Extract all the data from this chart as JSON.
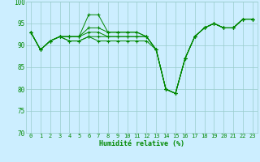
{
  "xlabel": "Humidité relative (%)",
  "bg_color": "#cceeff",
  "grid_color": "#99cccc",
  "line_color": "#008800",
  "xlim": [
    -0.5,
    23.5
  ],
  "ylim": [
    70,
    100
  ],
  "yticks": [
    70,
    75,
    80,
    85,
    90,
    95,
    100
  ],
  "xticks": [
    0,
    1,
    2,
    3,
    4,
    5,
    6,
    7,
    8,
    9,
    10,
    11,
    12,
    13,
    14,
    15,
    16,
    17,
    18,
    19,
    20,
    21,
    22,
    23
  ],
  "series": [
    [
      93,
      89,
      91,
      92,
      92,
      92,
      97,
      97,
      93,
      93,
      93,
      93,
      92,
      89,
      80,
      79,
      87,
      92,
      94,
      95,
      94,
      94,
      96,
      96
    ],
    [
      93,
      89,
      91,
      92,
      92,
      92,
      94,
      94,
      93,
      93,
      93,
      93,
      92,
      89,
      80,
      79,
      87,
      92,
      94,
      95,
      94,
      94,
      96,
      96
    ],
    [
      93,
      89,
      91,
      92,
      92,
      92,
      93,
      93,
      92,
      92,
      92,
      92,
      92,
      89,
      80,
      79,
      87,
      92,
      94,
      95,
      94,
      94,
      96,
      96
    ],
    [
      93,
      89,
      91,
      92,
      91,
      91,
      92,
      92,
      92,
      92,
      92,
      92,
      92,
      89,
      80,
      79,
      87,
      92,
      94,
      95,
      94,
      94,
      96,
      96
    ],
    [
      93,
      89,
      91,
      92,
      91,
      91,
      92,
      91,
      91,
      91,
      91,
      91,
      91,
      89,
      80,
      79,
      87,
      92,
      94,
      95,
      94,
      94,
      96,
      96
    ]
  ],
  "figsize": [
    3.2,
    2.0
  ],
  "dpi": 100
}
